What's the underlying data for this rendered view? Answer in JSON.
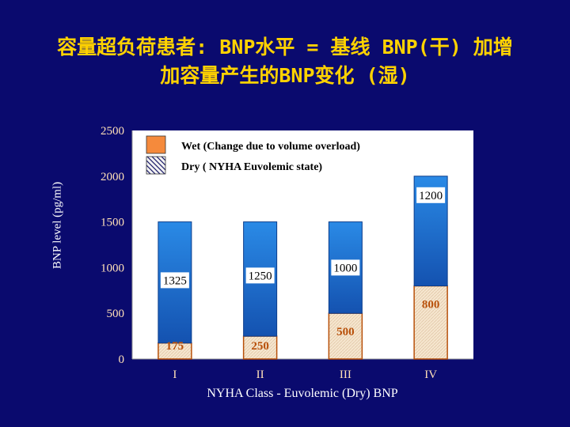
{
  "title_line1": "容量超负荷患者: BNP水平 = 基线 BNP(干) 加增",
  "title_line2": "加容量产生的BNP变化 (湿)",
  "colors": {
    "background": "#0a0a6e",
    "title": "#ffd200",
    "wet_series": "#1f6fd0",
    "dry_series": "#f4e2c8",
    "dry_label": "#b8500a",
    "legend_wet": "#f58a3c"
  },
  "chart_data": {
    "type": "bar",
    "stacked": true,
    "categories": [
      "I",
      "II",
      "III",
      "IV"
    ],
    "series": [
      {
        "name": "Dry ( NYHA Euvolemic state)",
        "values": [
          175,
          250,
          500,
          800
        ]
      },
      {
        "name": "Wet (Change due to volume overload)",
        "values": [
          1325,
          1250,
          1000,
          1200
        ]
      }
    ],
    "title": "",
    "xlabel": "NYHA Class - Euvolemic (Dry) BNP",
    "ylabel": "BNP level (pg/ml)",
    "ylim": [
      0,
      2500
    ],
    "yticks": [
      0,
      500,
      1000,
      1500,
      2000,
      2500
    ],
    "grid": false,
    "legend_position": "top-left",
    "legend": [
      {
        "label": "Wet (Change due to volume overload)",
        "pattern": "solid"
      },
      {
        "label": "Dry ( NYHA Euvolemic state)",
        "pattern": "hatched"
      }
    ]
  }
}
